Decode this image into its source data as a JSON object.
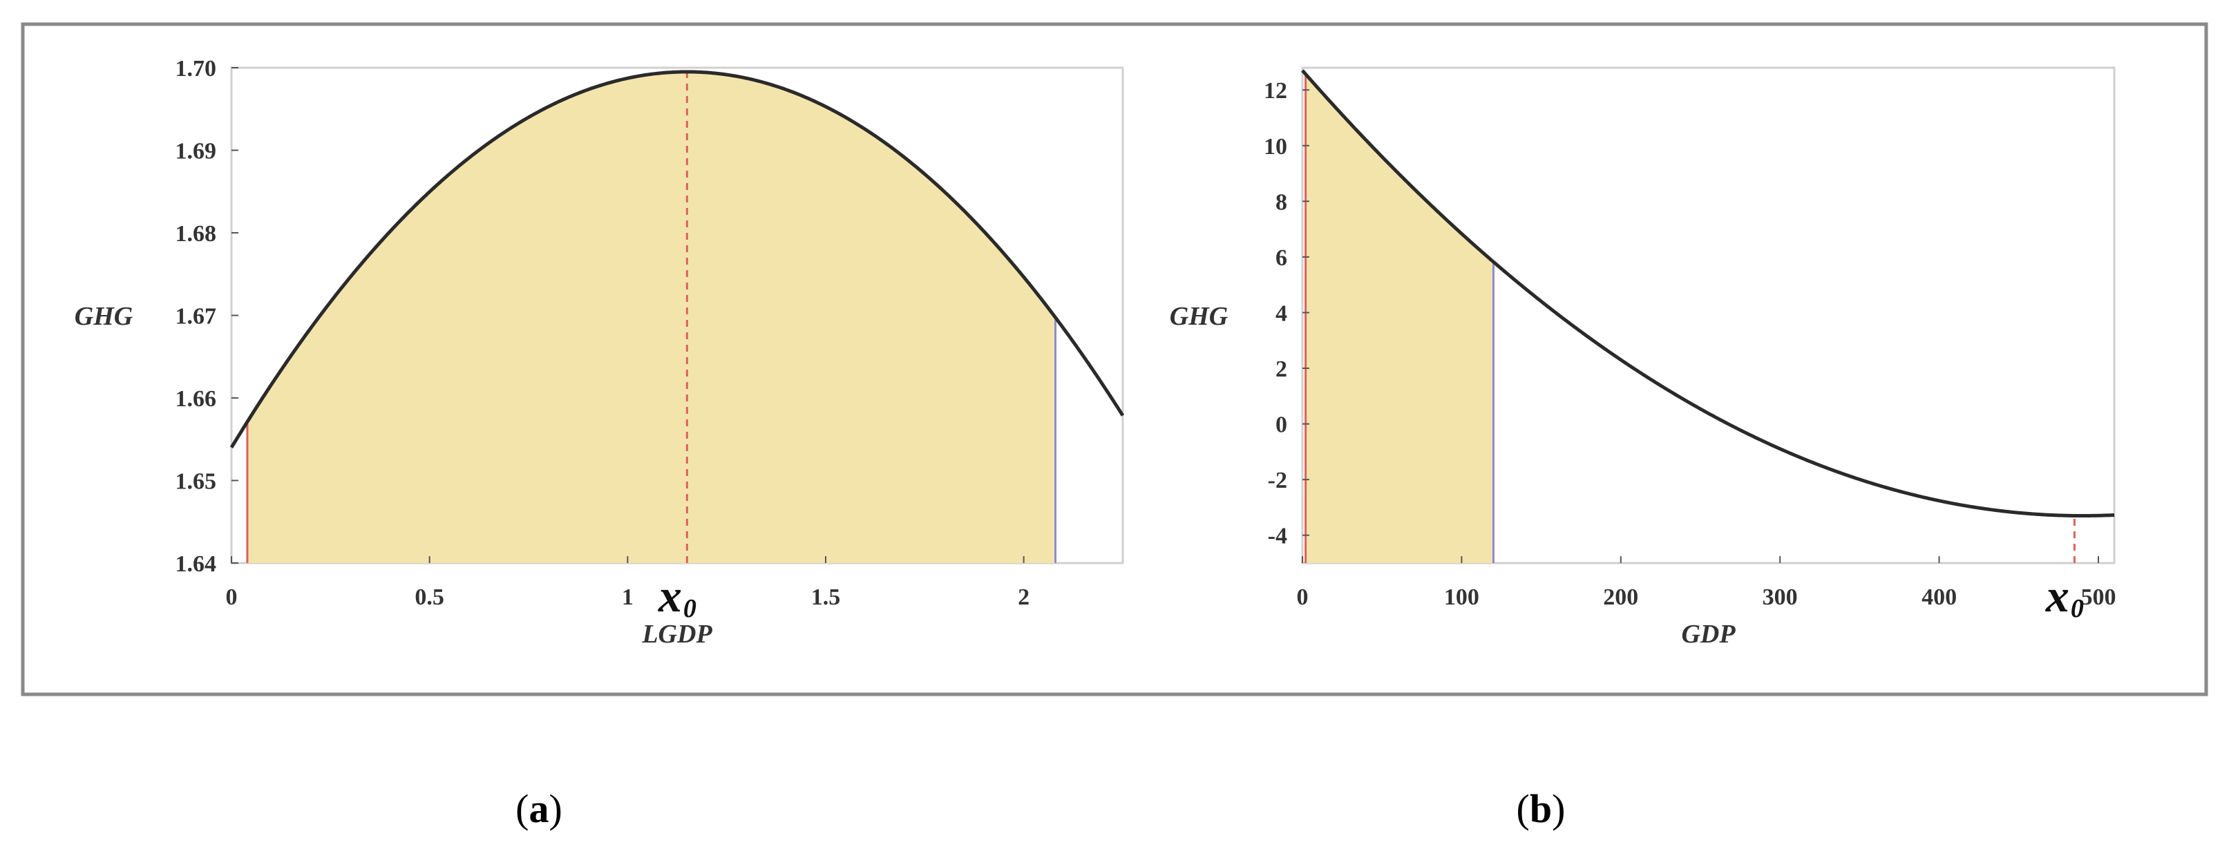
{
  "colors": {
    "fill": "#f3e4ac",
    "curve": "#2a2a2a",
    "left_bound": "#e0605a",
    "right_bound": "#8c8cd0",
    "vertex_line": "#e0605a",
    "frame": "#8a8a8a"
  },
  "chart_data": [
    {
      "panel": "a",
      "type": "line",
      "caption": "a",
      "xlabel": "LGDP",
      "ylabel": "GHG",
      "xlim": [
        0,
        2.25
      ],
      "ylim": [
        1.64,
        1.7
      ],
      "xticks": [
        0,
        0.5,
        1,
        1.5,
        2
      ],
      "xtick_labels": [
        "0",
        "0.5",
        "1",
        "1.5",
        "2"
      ],
      "yticks": [
        1.64,
        1.65,
        1.66,
        1.67,
        1.68,
        1.69,
        1.7
      ],
      "ytick_labels": [
        "1.64",
        "1.65",
        "1.66",
        "1.67",
        "1.68",
        "1.69",
        "1.70"
      ],
      "curve": {
        "form": "quadratic",
        "vertex_x": 1.15,
        "vertex_y": 1.6995,
        "x_at_zero": 0,
        "y_at_zero": 1.654
      },
      "shaded_interval": [
        0.04,
        2.08
      ],
      "marker": {
        "x": 1.15,
        "label": "x",
        "subscript": "0"
      }
    },
    {
      "panel": "b",
      "type": "line",
      "caption": "b",
      "xlabel": "GDP",
      "ylabel": "GHG",
      "xlim": [
        0,
        510
      ],
      "ylim": [
        -5,
        12.8
      ],
      "xticks": [
        0,
        100,
        200,
        300,
        400,
        500
      ],
      "xtick_labels": [
        "0",
        "100",
        "200",
        "300",
        "400",
        "500"
      ],
      "yticks": [
        -4,
        -2,
        0,
        2,
        4,
        6,
        8,
        10,
        12
      ],
      "ytick_labels": [
        "-4",
        "-2",
        "0",
        "2",
        "4",
        "6",
        "8",
        "10",
        "12"
      ],
      "curve": {
        "form": "quadratic",
        "vertex_x": 490,
        "vertex_y": -3.3,
        "x_at_zero": 0,
        "y_at_zero": 12.7
      },
      "shaded_interval": [
        2,
        120
      ],
      "marker": {
        "x": 485,
        "label": "x",
        "subscript": "0"
      }
    }
  ]
}
